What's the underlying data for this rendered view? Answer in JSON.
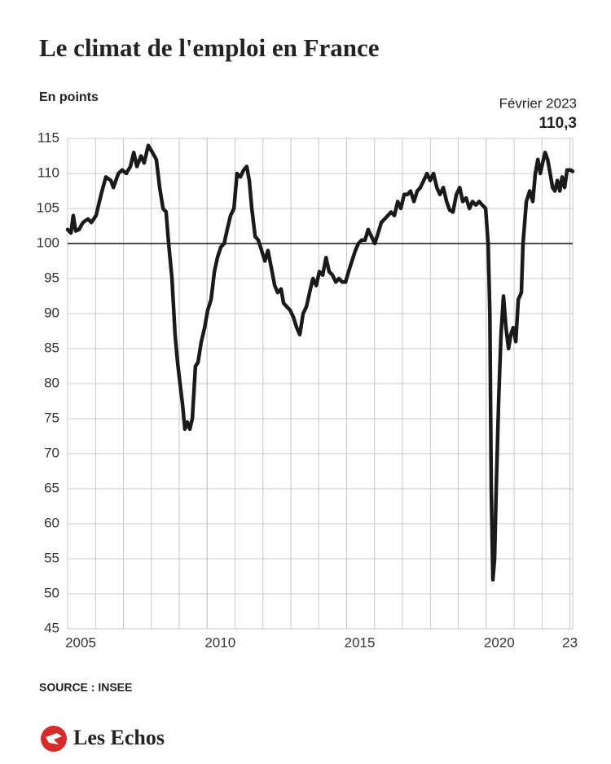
{
  "chart_data": {
    "type": "line",
    "title": "Le climat de l'emploi en France",
    "subtitle": "En points",
    "annotation": {
      "date": "Février 2023",
      "value_label": "110,3",
      "value": 110.3
    },
    "source": "SOURCE : INSEE",
    "brand": "Les Echos",
    "xlim": [
      2005,
      2023.1
    ],
    "xticks": [
      2005,
      2010,
      2015,
      2020,
      {
        "value": 2023,
        "label": "23"
      }
    ],
    "ylim": [
      45,
      115
    ],
    "yticks": [
      45,
      50,
      55,
      60,
      65,
      70,
      75,
      80,
      85,
      90,
      95,
      100,
      105,
      110,
      115
    ],
    "reference_line": 100,
    "grid": true,
    "series": [
      {
        "name": "Climat de l'emploi",
        "color": "#1a1a1a",
        "x": [
          2005.0,
          2005.12,
          2005.2,
          2005.29,
          2005.41,
          2005.55,
          2005.73,
          2005.85,
          2006.02,
          2006.2,
          2006.37,
          2006.55,
          2006.64,
          2006.82,
          2006.96,
          2007.1,
          2007.25,
          2007.37,
          2007.48,
          2007.63,
          2007.74,
          2007.89,
          2008.04,
          2008.18,
          2008.3,
          2008.42,
          2008.53,
          2008.62,
          2008.74,
          2008.85,
          2008.94,
          2009.03,
          2009.12,
          2009.2,
          2009.29,
          2009.38,
          2009.47,
          2009.58,
          2009.67,
          2009.79,
          2009.91,
          2010.02,
          2010.14,
          2010.26,
          2010.37,
          2010.49,
          2010.61,
          2010.72,
          2010.84,
          2010.96,
          2011.07,
          2011.19,
          2011.31,
          2011.42,
          2011.51,
          2011.6,
          2011.72,
          2011.83,
          2011.95,
          2012.07,
          2012.18,
          2012.3,
          2012.42,
          2012.53,
          2012.65,
          2012.74,
          2012.85,
          2012.97,
          2013.09,
          2013.21,
          2013.32,
          2013.44,
          2013.56,
          2013.67,
          2013.79,
          2013.91,
          2014.02,
          2014.14,
          2014.26,
          2014.37,
          2014.49,
          2014.61,
          2014.72,
          2014.84,
          2014.96,
          2015.07,
          2015.19,
          2015.31,
          2015.42,
          2015.54,
          2015.66,
          2015.77,
          2015.89,
          2016.01,
          2016.13,
          2016.24,
          2016.36,
          2016.48,
          2016.59,
          2016.71,
          2016.83,
          2016.94,
          2017.06,
          2017.18,
          2017.29,
          2017.41,
          2017.53,
          2017.64,
          2017.76,
          2017.88,
          2017.99,
          2018.11,
          2018.23,
          2018.34,
          2018.46,
          2018.58,
          2018.69,
          2018.81,
          2018.93,
          2019.05,
          2019.16,
          2019.28,
          2019.4,
          2019.51,
          2019.63,
          2019.75,
          2019.86,
          2019.98,
          2020.07,
          2020.13,
          2020.18,
          2020.24,
          2020.3,
          2020.36,
          2020.45,
          2020.53,
          2020.62,
          2020.71,
          2020.8,
          2020.88,
          2020.97,
          2021.06,
          2021.15,
          2021.26,
          2021.32,
          2021.44,
          2021.56,
          2021.67,
          2021.76,
          2021.85,
          2021.94,
          2022.02,
          2022.11,
          2022.2,
          2022.29,
          2022.38,
          2022.46,
          2022.55,
          2022.64,
          2022.72,
          2022.81,
          2022.9,
          2023.02,
          2023.1
        ],
        "values": [
          102,
          101.5,
          104,
          101.8,
          102,
          103,
          103.5,
          103,
          104,
          107,
          109.5,
          109,
          108,
          110,
          110.5,
          110,
          111,
          113,
          111,
          112.5,
          111.5,
          114,
          113,
          112,
          108,
          105,
          104.5,
          100,
          95,
          87,
          83,
          80,
          77,
          73.5,
          74.5,
          73.5,
          75,
          82.5,
          83,
          86,
          88,
          90.5,
          92,
          96,
          98,
          99.5,
          100,
          102,
          104,
          105,
          110,
          109.5,
          110.5,
          111,
          109,
          105,
          101,
          100.5,
          99,
          97.5,
          99,
          96.5,
          94,
          93,
          93.5,
          91.5,
          91,
          90.5,
          89.5,
          88,
          87,
          90,
          91,
          93,
          95,
          94,
          96,
          95.5,
          98,
          96,
          95.5,
          94.5,
          95,
          94.5,
          94.5,
          96,
          97.5,
          99,
          100,
          100.5,
          100.5,
          102,
          101,
          100,
          101.5,
          103,
          103.5,
          104,
          104.5,
          104,
          106,
          105,
          107,
          107,
          107.5,
          106,
          107.5,
          108,
          109,
          110,
          109,
          110,
          108,
          107,
          108,
          106,
          104.8,
          104.5,
          107,
          108,
          106,
          106.5,
          105,
          106,
          105.5,
          106,
          105.5,
          105,
          100,
          90,
          65,
          52,
          55,
          65,
          78,
          87,
          92.5,
          88,
          85,
          87,
          88,
          86,
          92,
          93,
          100,
          106,
          107.5,
          106,
          110,
          112,
          110,
          111.5,
          113,
          112,
          110,
          108,
          107.5,
          109,
          107.5,
          109.5,
          108,
          110.5,
          110.5,
          110.3
        ]
      }
    ]
  }
}
